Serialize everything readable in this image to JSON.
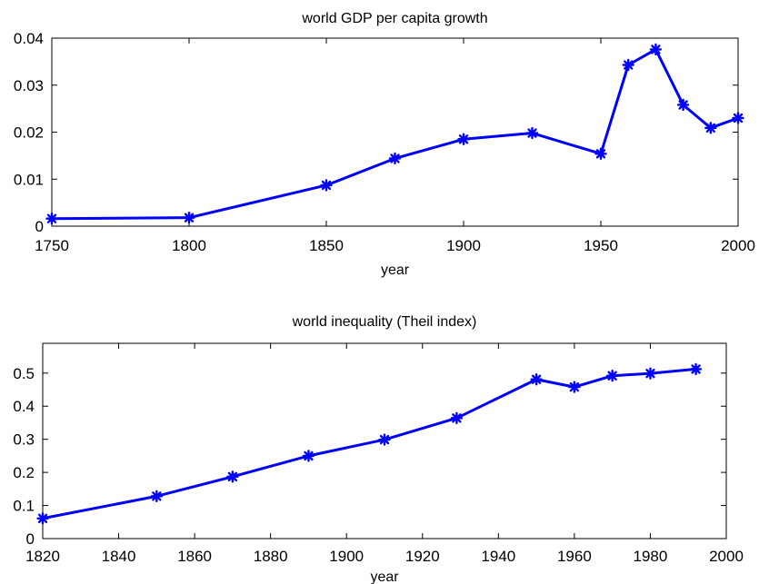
{
  "chart_data": [
    {
      "type": "line",
      "title": "world GDP per capita growth",
      "xlabel": "year",
      "ylabel": "",
      "xlim": [
        1750,
        2000
      ],
      "ylim": [
        0,
        0.04
      ],
      "xticks": [
        1750,
        1800,
        1850,
        1900,
        1950,
        2000
      ],
      "yticks": [
        0,
        0.01,
        0.02,
        0.03,
        0.04
      ],
      "xtick_labels": [
        "1750",
        "1800",
        "1850",
        "1900",
        "1950",
        "2000"
      ],
      "ytick_labels": [
        "0",
        "0.01",
        "0.02",
        "0.03",
        "0.04"
      ],
      "grid": false,
      "color": "#0000ff",
      "marker": "asterisk",
      "series": [
        {
          "x": [
            1750,
            1800,
            1850,
            1875,
            1900,
            1925,
            1950,
            1960,
            1970,
            1980,
            1990,
            2000
          ],
          "y": [
            0.0016,
            0.0018,
            0.0087,
            0.0144,
            0.0185,
            0.0198,
            0.0154,
            0.0343,
            0.0376,
            0.0258,
            0.0209,
            0.023
          ]
        }
      ]
    },
    {
      "type": "line",
      "title": "world inequality (Theil index)",
      "xlabel": "year",
      "ylabel": "",
      "xlim": [
        1820,
        2000
      ],
      "ylim": [
        0,
        0.59
      ],
      "xticks": [
        1820,
        1840,
        1860,
        1880,
        1900,
        1920,
        1940,
        1960,
        1980,
        2000
      ],
      "yticks": [
        0,
        0.1,
        0.2,
        0.3,
        0.4,
        0.5
      ],
      "xtick_labels": [
        "1820",
        "1840",
        "1860",
        "1880",
        "1900",
        "1920",
        "1940",
        "1960",
        "1980",
        "2000"
      ],
      "ytick_labels": [
        "0",
        "0.1",
        "0.2",
        "0.3",
        "0.4",
        "0.5"
      ],
      "grid": false,
      "color": "#0000ff",
      "marker": "asterisk",
      "series": [
        {
          "x": [
            1820,
            1850,
            1870,
            1890,
            1910,
            1929,
            1950,
            1960,
            1970,
            1980,
            1992
          ],
          "y": [
            0.061,
            0.128,
            0.187,
            0.25,
            0.299,
            0.364,
            0.481,
            0.458,
            0.492,
            0.499,
            0.512
          ]
        }
      ]
    }
  ]
}
